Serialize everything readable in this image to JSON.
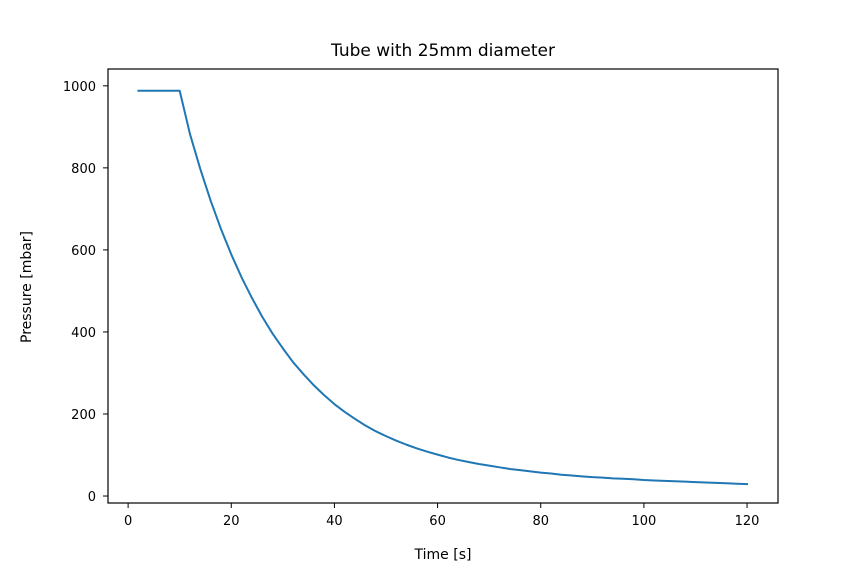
{
  "chart_data": {
    "type": "line",
    "title": "Tube with 25mm diameter",
    "xlabel": "Time [s]",
    "ylabel": "Pressure [mbar]",
    "xlim": [
      -3.9,
      126
    ],
    "ylim": [
      -17,
      1041
    ],
    "xticks": [
      0,
      20,
      40,
      60,
      80,
      100,
      120
    ],
    "yticks": [
      0,
      200,
      400,
      600,
      800,
      1000
    ],
    "grid": false,
    "series": [
      {
        "color": "#1f77b4",
        "x": [
          2,
          4,
          6,
          8,
          10,
          12,
          14,
          16,
          18,
          20,
          22,
          24,
          26,
          28,
          30,
          32,
          34,
          36,
          38,
          40,
          42,
          44,
          46,
          48,
          50,
          52,
          54,
          56,
          58,
          60,
          62,
          64,
          66,
          68,
          70,
          72,
          74,
          76,
          78,
          80,
          82,
          84,
          86,
          88,
          90,
          92,
          94,
          96,
          98,
          100,
          102,
          104,
          106,
          108,
          110,
          112,
          114,
          116,
          118,
          120
        ],
        "y": [
          988,
          988,
          988,
          988,
          988,
          882,
          797,
          720,
          651,
          589,
          533,
          483,
          437,
          396,
          360,
          326,
          297,
          270,
          246,
          224,
          205,
          188,
          172,
          158,
          146,
          135,
          125,
          116,
          108,
          101,
          94,
          88,
          83,
          78,
          74,
          70,
          66,
          63,
          60,
          57,
          55,
          52,
          50,
          48,
          46,
          45,
          43,
          42,
          41,
          39,
          38,
          37,
          36,
          35,
          34,
          33,
          32,
          31,
          30,
          29
        ]
      }
    ]
  }
}
